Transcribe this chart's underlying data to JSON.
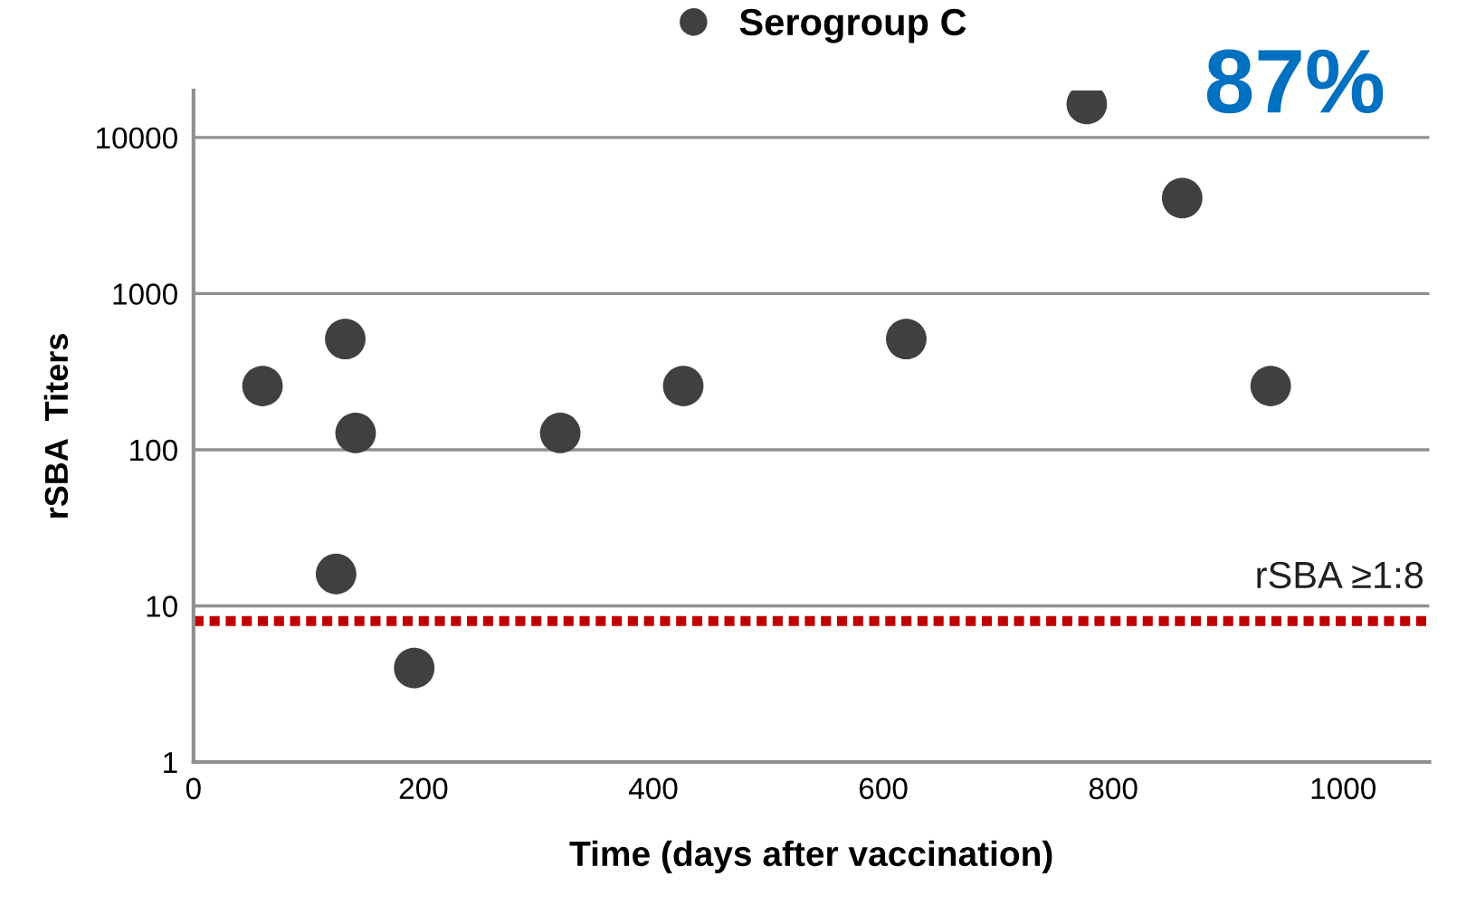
{
  "chart_data": {
    "type": "scatter",
    "xlabel": "Time (days after vaccination)",
    "ylabel": "rSBA  Titers",
    "series": [
      {
        "name": "Serogroup C",
        "color": "#404040",
        "x": [
          60,
          132,
          141,
          124,
          192,
          319,
          426,
          620,
          777,
          860,
          937
        ],
        "values": [
          256,
          512,
          128,
          16,
          4,
          128,
          256,
          512,
          16384,
          4096,
          256
        ]
      }
    ],
    "log": "y",
    "xlim": [
      0,
      1075
    ],
    "xticks": [
      0,
      200,
      400,
      600,
      800,
      1000
    ],
    "ylim": [
      1,
      20000
    ],
    "yticks": [
      1,
      10,
      100,
      1000,
      10000
    ],
    "grid": "y",
    "legend": "top",
    "marker": "circle",
    "ref_lines": [
      {
        "axis": "y",
        "value": 8,
        "label": "rSBA ≥1:8",
        "color": "#c00000",
        "line_style": "dotted"
      }
    ],
    "annotations": [
      "87%"
    ]
  }
}
